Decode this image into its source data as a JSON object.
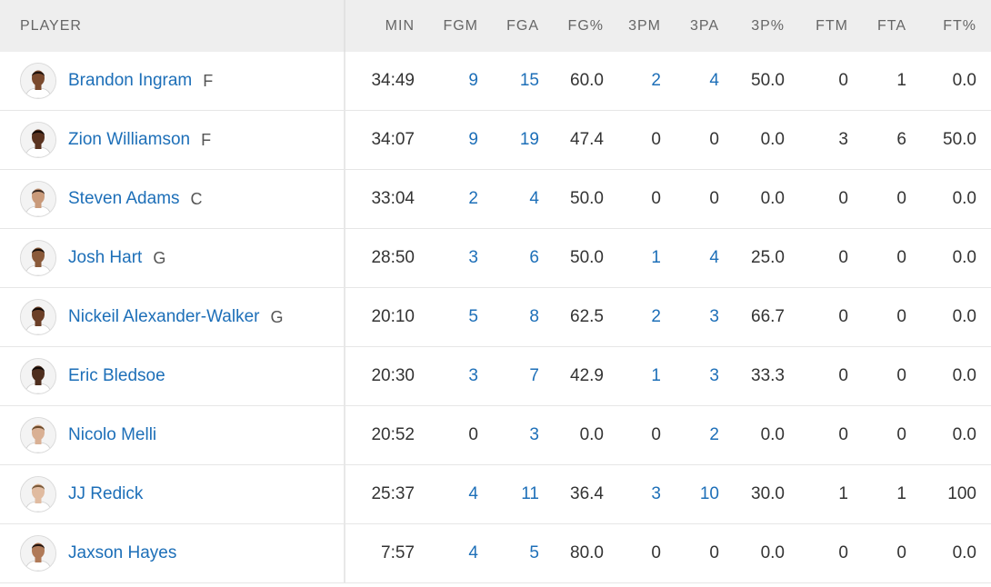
{
  "columns": {
    "player": "PLAYER",
    "min": "MIN",
    "fgm": "FGM",
    "fga": "FGA",
    "fgp": "FG%",
    "tpm": "3PM",
    "tpa": "3PA",
    "tpp": "3P%",
    "ftm": "FTM",
    "fta": "FTA",
    "ftp": "FT%"
  },
  "players": [
    {
      "name": "Brandon Ingram",
      "pos": "F",
      "min": "34:49",
      "fgm": "9",
      "fga": "15",
      "fgp": "60.0",
      "tpm": "2",
      "tpa": "4",
      "tpp": "50.0",
      "ftm": "0",
      "fta": "1",
      "ftp": "0.0"
    },
    {
      "name": "Zion Williamson",
      "pos": "F",
      "min": "34:07",
      "fgm": "9",
      "fga": "19",
      "fgp": "47.4",
      "tpm": "0",
      "tpa": "0",
      "tpp": "0.0",
      "ftm": "3",
      "fta": "6",
      "ftp": "50.0"
    },
    {
      "name": "Steven Adams",
      "pos": "C",
      "min": "33:04",
      "fgm": "2",
      "fga": "4",
      "fgp": "50.0",
      "tpm": "0",
      "tpa": "0",
      "tpp": "0.0",
      "ftm": "0",
      "fta": "0",
      "ftp": "0.0"
    },
    {
      "name": "Josh Hart",
      "pos": "G",
      "min": "28:50",
      "fgm": "3",
      "fga": "6",
      "fgp": "50.0",
      "tpm": "1",
      "tpa": "4",
      "tpp": "25.0",
      "ftm": "0",
      "fta": "0",
      "ftp": "0.0"
    },
    {
      "name": "Nickeil Alexander-Walker",
      "pos": "G",
      "min": "20:10",
      "fgm": "5",
      "fga": "8",
      "fgp": "62.5",
      "tpm": "2",
      "tpa": "3",
      "tpp": "66.7",
      "ftm": "0",
      "fta": "0",
      "ftp": "0.0"
    },
    {
      "name": "Eric Bledsoe",
      "pos": "",
      "min": "20:30",
      "fgm": "3",
      "fga": "7",
      "fgp": "42.9",
      "tpm": "1",
      "tpa": "3",
      "tpp": "33.3",
      "ftm": "0",
      "fta": "0",
      "ftp": "0.0"
    },
    {
      "name": "Nicolo Melli",
      "pos": "",
      "min": "20:52",
      "fgm": "0",
      "fga": "3",
      "fgp": "0.0",
      "tpm": "0",
      "tpa": "2",
      "tpp": "0.0",
      "ftm": "0",
      "fta": "0",
      "ftp": "0.0"
    },
    {
      "name": "JJ Redick",
      "pos": "",
      "min": "25:37",
      "fgm": "4",
      "fga": "11",
      "fgp": "36.4",
      "tpm": "3",
      "tpa": "10",
      "tpp": "30.0",
      "ftm": "1",
      "fta": "1",
      "ftp": "100"
    },
    {
      "name": "Jaxson Hayes",
      "pos": "",
      "min": "7:57",
      "fgm": "4",
      "fga": "5",
      "fgp": "80.0",
      "tpm": "0",
      "tpa": "0",
      "tpp": "0.0",
      "ftm": "0",
      "fta": "0",
      "ftp": "0.0"
    }
  ],
  "avatar_skin": [
    "#7a4a2e",
    "#5a3320",
    "#c99a7a",
    "#8a5a3a",
    "#6b3f27",
    "#4e2e1e",
    "#d9b094",
    "#e0bba0",
    "#b07a58"
  ],
  "avatar_hair": [
    "#1e120c",
    "#140b07",
    "#3a2a22",
    "#1a110b",
    "#120906",
    "#0f0805",
    "#6b4a2a",
    "#7a5a3a",
    "#231510"
  ],
  "colors": {
    "link": "#1d6fb8",
    "header_bg": "#eeeeee",
    "row_border": "#e6e6e6"
  }
}
